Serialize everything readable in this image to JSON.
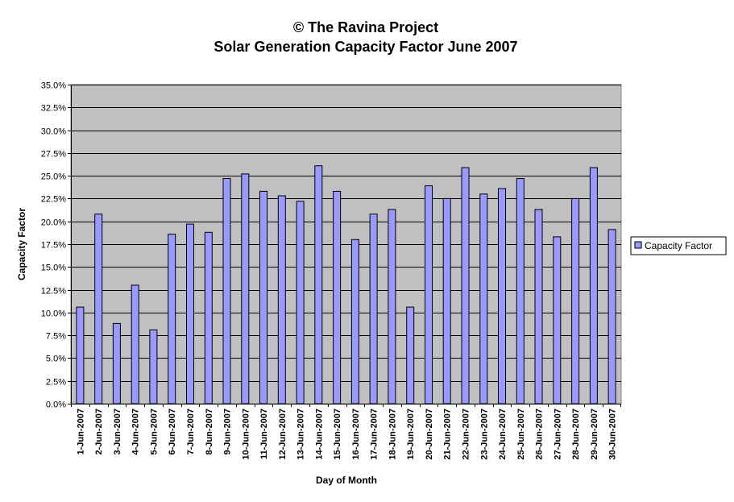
{
  "chart_data": {
    "type": "bar",
    "title_line1": "© The Ravina Project",
    "title_line2": "Solar Generation Capacity Factor June 2007",
    "xlabel": "Day of Month",
    "ylabel": "Capacity Factor",
    "ylim": [
      0,
      35
    ],
    "ytick_step": 2.5,
    "ytick_labels": [
      "0.0%",
      "2.5%",
      "5.0%",
      "7.5%",
      "10.0%",
      "12.5%",
      "15.0%",
      "17.5%",
      "20.0%",
      "22.5%",
      "25.0%",
      "27.5%",
      "30.0%",
      "32.5%",
      "35.0%"
    ],
    "grid": true,
    "legend_position": "right",
    "plot_background": "#c0c0c0",
    "bar_color": "#9999ff",
    "categories": [
      "1-Jun-2007",
      "2-Jun-2007",
      "3-Jun-2007",
      "4-Jun-2007",
      "5-Jun-2007",
      "6-Jun-2007",
      "7-Jun-2007",
      "8-Jun-2007",
      "9-Jun-2007",
      "10-Jun-2007",
      "11-Jun-2007",
      "12-Jun-2007",
      "13-Jun-2007",
      "14-Jun-2007",
      "15-Jun-2007",
      "16-Jun-2007",
      "17-Jun-2007",
      "18-Jun-2007",
      "19-Jun-2007",
      "20-Jun-2007",
      "21-Jun-2007",
      "22-Jun-2007",
      "23-Jun-2007",
      "24-Jun-2007",
      "25-Jun-2007",
      "26-Jun-2007",
      "27-Jun-2007",
      "28-Jun-2007",
      "29-Jun-2007",
      "30-Jun-2007"
    ],
    "series": [
      {
        "name": "Capacity Factor",
        "values": [
          10.6,
          20.8,
          8.8,
          13.0,
          8.1,
          18.6,
          19.7,
          18.8,
          24.7,
          25.2,
          23.3,
          22.8,
          22.2,
          26.1,
          23.3,
          18.0,
          20.8,
          21.3,
          10.6,
          23.9,
          22.5,
          25.9,
          23.0,
          23.6,
          24.7,
          21.3,
          18.3,
          22.5,
          25.9,
          19.1
        ]
      }
    ]
  }
}
